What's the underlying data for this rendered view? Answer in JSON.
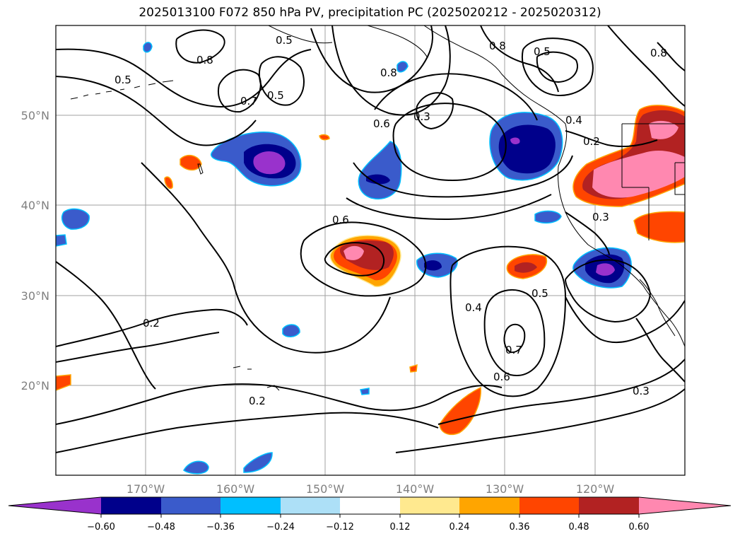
{
  "title": "2025013100 F072 850 hPa PV, precipitation PC (2025020212 - 2025020312)",
  "map": {
    "projection": "PlateCarree",
    "extent": {
      "lon": [
        -180,
        -110
      ],
      "lat": [
        10,
        60
      ]
    },
    "lon_ticks": [
      "170°W",
      "160°W",
      "150°W",
      "140°W",
      "130°W",
      "120°W"
    ],
    "lat_ticks": [
      "50°N",
      "40°N",
      "30°N",
      "20°N"
    ],
    "gridlines": true,
    "colorbar": {
      "ticks": [
        "−0.60",
        "−0.48",
        "−0.36",
        "−0.24",
        "−0.12",
        "0.12",
        "0.24",
        "0.36",
        "0.48",
        "0.60"
      ],
      "colors": [
        "#9932CC",
        "#00008B",
        "#3A5BCB",
        "#00BFFF",
        "#ADE0F7",
        "#FFFFFF",
        "#FFE98F",
        "#FFA500",
        "#FF4500",
        "#B22222",
        "#FF88B0"
      ],
      "extend": "both"
    },
    "contour_labels": [
      "0.8",
      "0.5",
      "0.7",
      "0.5",
      "0.5",
      "0.8",
      "0.6",
      "0.3",
      "0.8",
      "0.5",
      "0.8",
      "0.4",
      "0.2",
      "0.3",
      "0.6",
      "0.4",
      "0.5",
      "0.7",
      "0.6",
      "0.2",
      "0.2",
      "0.3"
    ]
  }
}
